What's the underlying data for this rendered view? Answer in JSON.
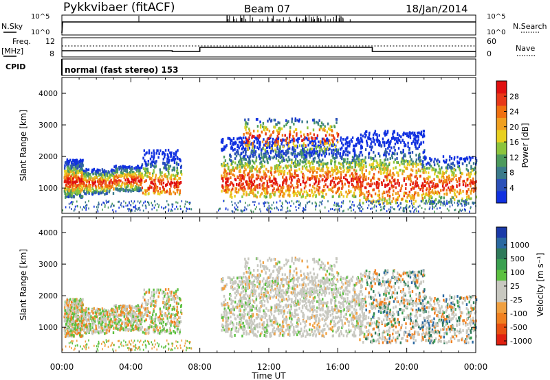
{
  "header": {
    "station": "Pykkvibaer (fitACF)",
    "beam": "Beam 07",
    "date": "18/Jan/2014"
  },
  "top_panels": {
    "nsky_label": "N.Sky",
    "nsearch_label": "N.Search",
    "nsky_ticks": [
      "10^5",
      "10^0"
    ],
    "nsearch_ticks": [
      "10^5",
      "10^0"
    ],
    "freq_label": "Freq.",
    "freq_unit": "[MHz]",
    "freq_ticks": [
      "12",
      "8"
    ],
    "nave_label": "Nave",
    "nave_ticks": [
      "60",
      "0"
    ],
    "cpid_label": "CPID",
    "cpid_value": "normal (fast stereo) 153"
  },
  "chart_data": [
    {
      "type": "heatmap",
      "ylabel": "Slant Range [km]",
      "yticks": [
        "1000",
        "2000",
        "3000",
        "4000"
      ],
      "ylim": [
        200,
        4500
      ],
      "xlim_hours": [
        0,
        24
      ],
      "colorbar": {
        "label": "Power [dB]",
        "ticks": [
          "4",
          "8",
          "12",
          "16",
          "20",
          "24",
          "28"
        ],
        "colors": [
          "#1030e0",
          "#2a50b8",
          "#3a7a8a",
          "#4c9a5c",
          "#8cc43c",
          "#e8d020",
          "#f0a020",
          "#f07010",
          "#e83818",
          "#e01010"
        ]
      }
    },
    {
      "type": "heatmap",
      "ylabel": "Slant Range [km]",
      "yticks": [
        "1000",
        "2000",
        "3000",
        "4000"
      ],
      "ylim": [
        200,
        4500
      ],
      "xlim_hours": [
        0,
        24
      ],
      "xlabel": "Time UT",
      "xticks": [
        "00:00",
        "04:00",
        "08:00",
        "12:00",
        "16:00",
        "20:00",
        "00:00"
      ],
      "colorbar": {
        "label": "Velocity [m s⁻¹]",
        "ticks": [
          "1000",
          "500",
          "100",
          "25",
          "-25",
          "-100",
          "-500",
          "-1000"
        ],
        "colors": [
          "#1a3aa8",
          "#2a68a0",
          "#2e7a5a",
          "#3aa050",
          "#5cc040",
          "#c8c8c0",
          "#c8c8c0",
          "#f0a040",
          "#f08020",
          "#e85010",
          "#e02010"
        ]
      }
    }
  ]
}
